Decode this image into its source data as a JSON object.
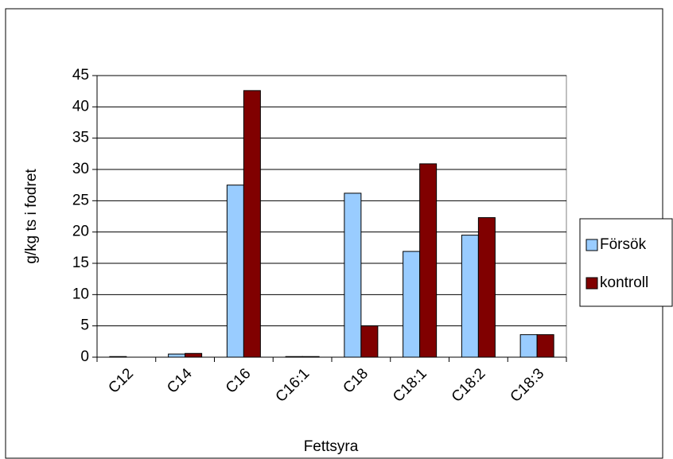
{
  "chart_data": {
    "type": "bar",
    "x_label": "Fettsyra",
    "y_label": "g/kg ts i fodret",
    "categories": [
      "C12",
      "C14",
      "C16",
      "C16:1",
      "C18",
      "C18:1",
      "C18:2",
      "C18:3"
    ],
    "series": [
      {
        "name": "Försök",
        "color": "#99ccff",
        "values": [
          0.1,
          0.5,
          27.5,
          0.1,
          26.2,
          16.9,
          19.5,
          3.6
        ]
      },
      {
        "name": "kontroll",
        "color": "#800000",
        "values": [
          0,
          0.6,
          42.6,
          0.1,
          5.0,
          30.9,
          22.3,
          3.6
        ]
      }
    ],
    "ylim": [
      0,
      45
    ],
    "yticks": [
      0,
      5,
      10,
      15,
      20,
      25,
      30,
      35,
      40,
      45
    ],
    "grid": true,
    "legend": "right"
  }
}
